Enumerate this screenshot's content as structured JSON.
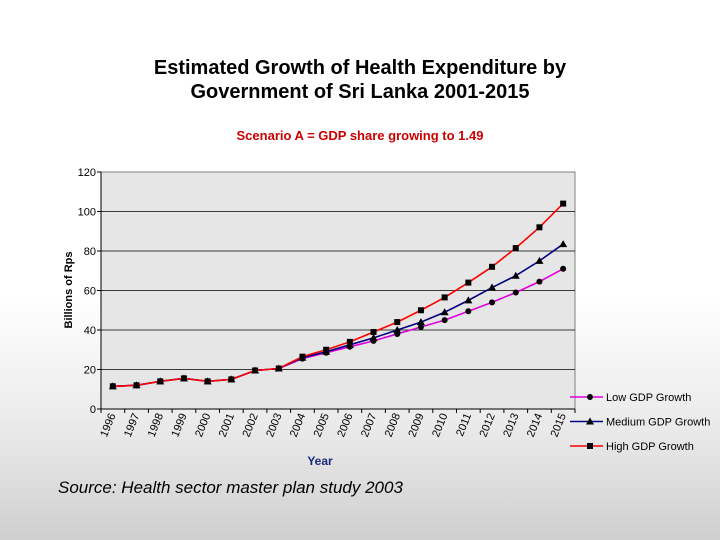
{
  "header": {
    "title_line1": "Estimated Growth of Health Expenditure by",
    "title_line2": "Government of Sri Lanka 2001-2015",
    "subtitle": "Scenario A = GDP share growing to 1.49"
  },
  "footer": {
    "source": "Source: Health sector master plan study 2003"
  },
  "chart_data": {
    "type": "line",
    "title": "Estimated Growth of Health Expenditure by Government of Sri Lanka 2001-2015",
    "subtitle": "Scenario A = GDP share growing to 1.49",
    "xlabel": "Year",
    "ylabel": "Billions of Rps",
    "ylim": [
      0,
      120
    ],
    "yticks": [
      "0",
      "20",
      "40",
      "60",
      "80",
      "100",
      "120"
    ],
    "grid": true,
    "legend": "right",
    "categories": [
      "1996",
      "1997",
      "1998",
      "1999",
      "2000",
      "2001",
      "2002",
      "2003",
      "2004",
      "2005",
      "2006",
      "2007",
      "2008",
      "2009",
      "2010",
      "2011",
      "2012",
      "2013",
      "2014",
      "2015"
    ],
    "series": [
      {
        "name": "Low GDP Growth",
        "color": "#e000e0",
        "marker": "circle",
        "values": [
          11.5,
          12,
          14,
          15.5,
          14,
          15,
          19.5,
          20.5,
          25.5,
          28.5,
          31.5,
          34.5,
          38,
          41.5,
          45,
          49.5,
          54,
          59,
          64.5,
          71
        ]
      },
      {
        "name": "Medium GDP Growth",
        "color": "#000080",
        "marker": "triangle",
        "values": [
          11.5,
          12,
          14,
          15.5,
          14,
          15,
          19.5,
          20.5,
          26,
          29,
          32.5,
          36,
          40,
          44,
          49,
          55,
          61.5,
          67.5,
          75,
          83.5
        ]
      },
      {
        "name": "High GDP Growth",
        "color": "#ff0000",
        "marker": "square",
        "values": [
          11.5,
          12,
          14,
          15.5,
          14,
          15,
          19.5,
          20.5,
          26.5,
          30,
          34,
          39,
          44,
          50,
          56.5,
          64,
          72,
          81.5,
          92,
          104
        ]
      }
    ]
  }
}
